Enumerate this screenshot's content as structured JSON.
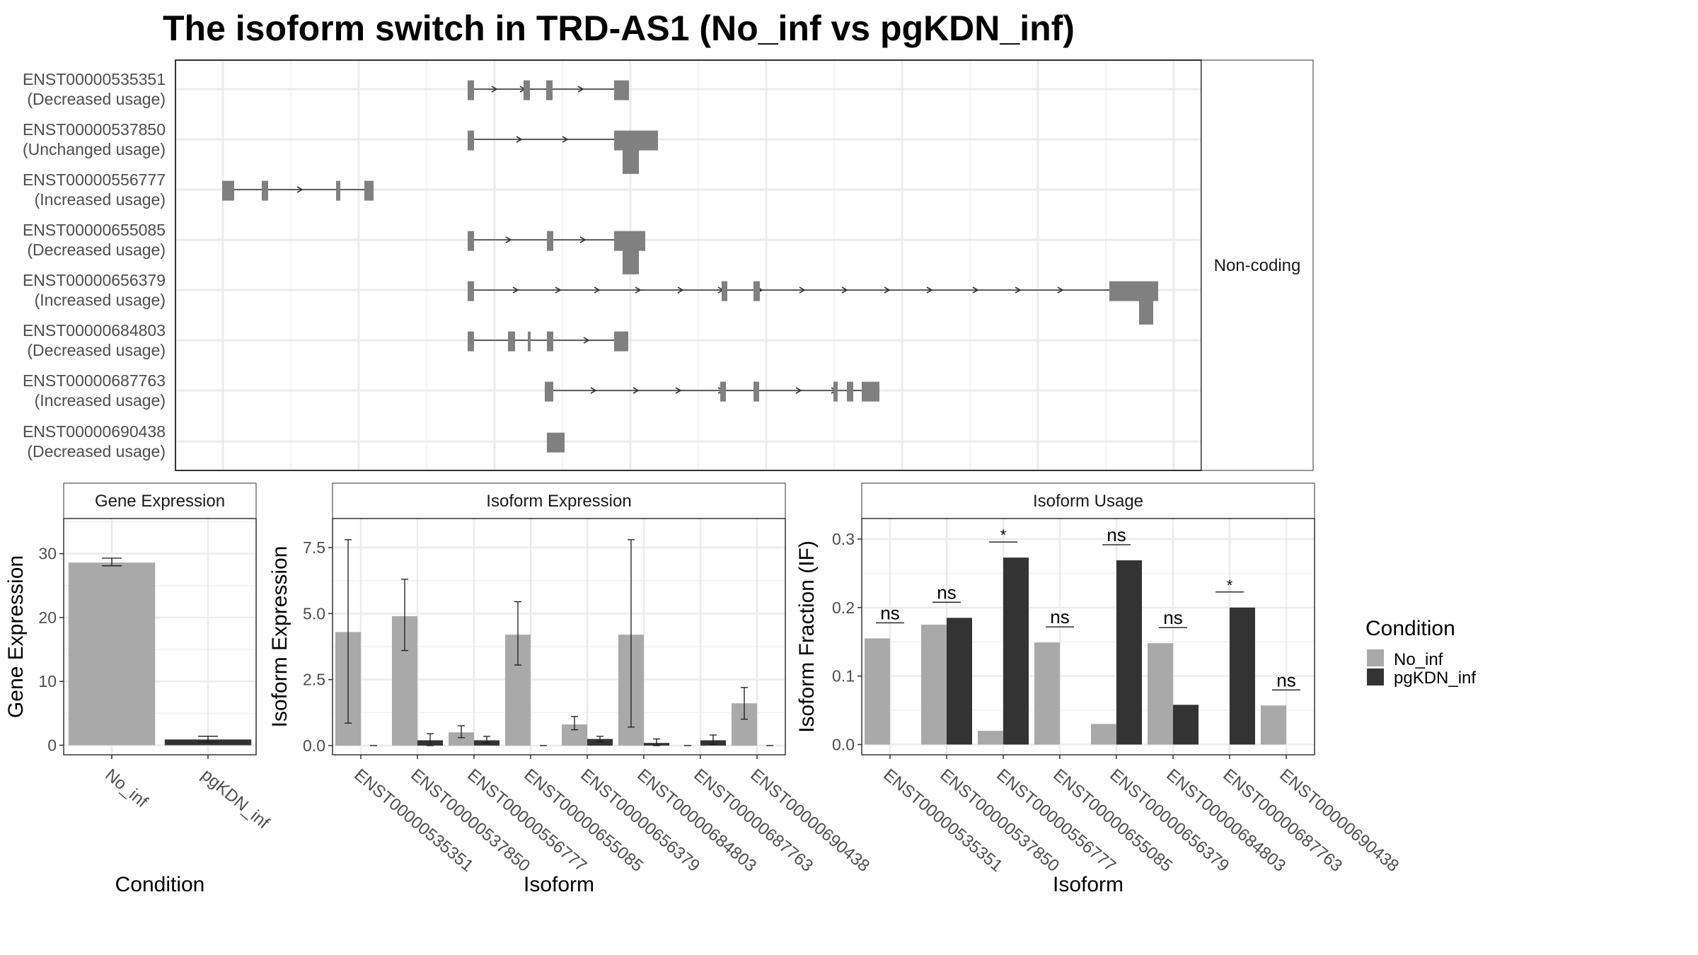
{
  "title": "The isoform switch in TRD-AS1 (No_inf vs pgKDN_inf)",
  "transcripts_panel": {
    "strip_label": "Non-coding",
    "transcripts": [
      {
        "id": "ENST00000535351",
        "usage": "(Decreased usage)"
      },
      {
        "id": "ENST00000537850",
        "usage": "(Unchanged usage)"
      },
      {
        "id": "ENST00000556777",
        "usage": "(Increased usage)"
      },
      {
        "id": "ENST00000655085",
        "usage": "(Decreased usage)"
      },
      {
        "id": "ENST00000656379",
        "usage": "(Increased usage)"
      },
      {
        "id": "ENST00000684803",
        "usage": "(Decreased usage)"
      },
      {
        "id": "ENST00000687763",
        "usage": "(Increased usage)"
      },
      {
        "id": "ENST00000690438",
        "usage": "(Decreased usage)"
      }
    ]
  },
  "legend": {
    "title": "Condition",
    "entries": [
      {
        "label": "No_inf",
        "color": "#a9a9a9"
      },
      {
        "label": "pgKDN_inf",
        "color": "#333333"
      }
    ]
  },
  "chart_data": [
    {
      "type": "bar",
      "panel": "Gene Expression",
      "xlabel": "Condition",
      "ylabel": "Gene Expression",
      "categories": [
        "No_inf",
        "pgKDN_inf"
      ],
      "values": [
        28.6,
        0.9
      ],
      "errors": [
        [
          28.1,
          29.3
        ],
        [
          0.5,
          1.4
        ]
      ],
      "colors": [
        "#a9a9a9",
        "#333333"
      ],
      "ylim": [
        -1.5,
        35.5
      ],
      "yticks": [
        0,
        10,
        20,
        30
      ],
      "ytick_labels": [
        "0",
        "10",
        "20",
        "30"
      ],
      "grid": true
    },
    {
      "type": "bar",
      "panel": "Isoform Expression",
      "xlabel": "Isoform",
      "ylabel": "Isoform Expression",
      "categories": [
        "ENST00000535351",
        "ENST00000537850",
        "ENST00000556777",
        "ENST00000655085",
        "ENST00000656379",
        "ENST00000684803",
        "ENST00000687763",
        "ENST00000690438"
      ],
      "series": [
        {
          "name": "No_inf",
          "values": [
            4.3,
            4.9,
            0.5,
            4.2,
            0.8,
            4.2,
            0.0,
            1.6
          ],
          "errors": [
            [
              0.85,
              7.8
            ],
            [
              3.6,
              6.3
            ],
            [
              0.3,
              0.75
            ],
            [
              3.05,
              5.45
            ],
            [
              0.6,
              1.1
            ],
            [
              0.7,
              7.8
            ],
            [
              0.0,
              0.0
            ],
            [
              1.0,
              2.2
            ]
          ]
        },
        {
          "name": "pgKDN_inf",
          "values": [
            0.0,
            0.2,
            0.2,
            0.0,
            0.25,
            0.1,
            0.2,
            0.0
          ],
          "errors": [
            [
              0.0,
              0.0
            ],
            [
              0.0,
              0.45
            ],
            [
              0.1,
              0.35
            ],
            [
              0.0,
              0.0
            ],
            [
              0.15,
              0.35
            ],
            [
              0.0,
              0.25
            ],
            [
              0.05,
              0.4
            ],
            [
              0.0,
              0.0
            ]
          ]
        }
      ],
      "ylim": [
        -0.35,
        8.6
      ],
      "yticks": [
        0,
        2.5,
        5.0,
        7.5
      ],
      "ytick_labels": [
        "0.0",
        "2.5",
        "5.0",
        "7.5"
      ],
      "grid": true
    },
    {
      "type": "bar",
      "panel": "Isoform Usage",
      "xlabel": "Isoform",
      "ylabel": "Isoform Fraction (IF)",
      "categories": [
        "ENST00000535351",
        "ENST00000537850",
        "ENST00000556777",
        "ENST00000655085",
        "ENST00000656379",
        "ENST00000684803",
        "ENST00000687763",
        "ENST00000690438"
      ],
      "series": [
        {
          "name": "No_inf",
          "values": [
            0.155,
            0.175,
            0.02,
            0.149,
            0.03,
            0.148,
            0.0,
            0.057
          ]
        },
        {
          "name": "pgKDN_inf",
          "values": [
            0.0,
            0.185,
            0.273,
            0.0,
            0.269,
            0.058,
            0.2,
            0.0
          ]
        }
      ],
      "significance": [
        "ns",
        "ns",
        "*",
        "ns",
        "ns",
        "ns",
        "*",
        "ns"
      ],
      "ylim": [
        -0.015,
        0.33
      ],
      "yticks": [
        0,
        0.1,
        0.2,
        0.3
      ],
      "ytick_labels": [
        "0.0",
        "0.1",
        "0.2",
        "0.3"
      ],
      "grid": true
    }
  ]
}
